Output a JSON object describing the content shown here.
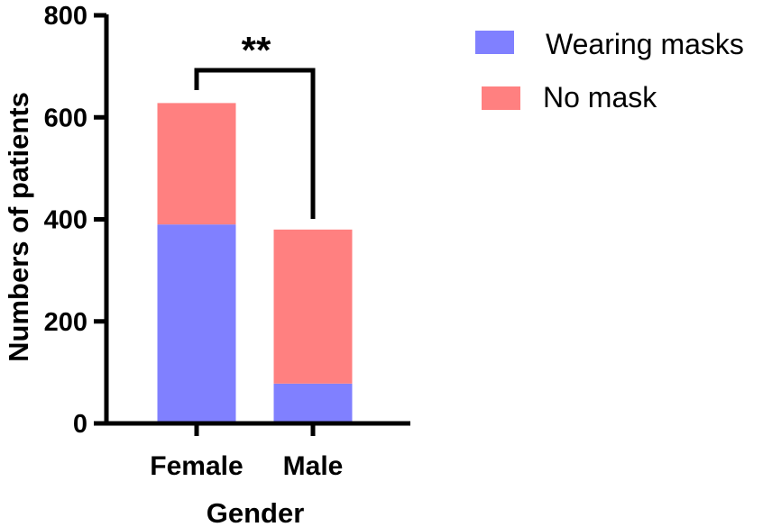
{
  "chart_data": {
    "type": "bar",
    "stacked": true,
    "categories": [
      "Female",
      "Male"
    ],
    "series": [
      {
        "name": "Wearing masks",
        "color": "#8080ff",
        "values": [
          390,
          78
        ]
      },
      {
        "name": "No mask",
        "color": "#ff8080",
        "values": [
          238,
          302
        ]
      }
    ],
    "xlabel": "Gender",
    "ylabel": "Numbers of patients",
    "ylim": [
      0,
      800
    ],
    "yticks": [
      "0",
      "200",
      "400",
      "600",
      "800"
    ],
    "legend_position": "top-right",
    "annotation": {
      "text": "**",
      "between": [
        "Female",
        "Male"
      ]
    },
    "grid": false
  }
}
